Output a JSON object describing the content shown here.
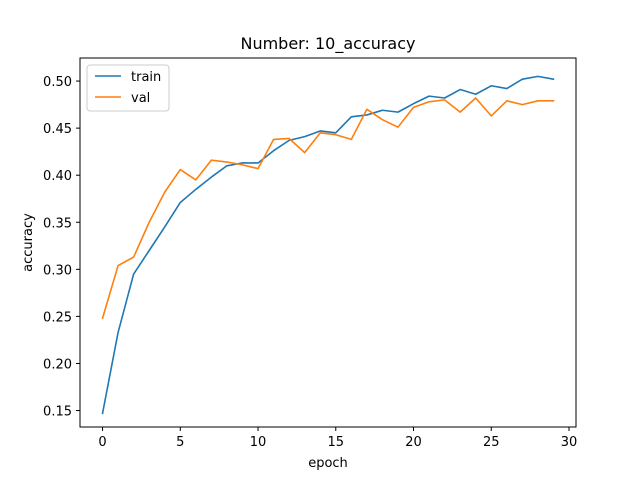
{
  "chart_data": {
    "type": "line",
    "title": "Number: 10_accuracy",
    "xlabel": "epoch",
    "ylabel": "accuracy",
    "xlim": [
      -1.45,
      30.45
    ],
    "ylim": [
      0.1325,
      0.5245
    ],
    "xticks": [
      0,
      5,
      10,
      15,
      20,
      25,
      30
    ],
    "yticks": [
      0.15,
      0.2,
      0.25,
      0.3,
      0.35,
      0.4,
      0.45,
      0.5
    ],
    "ytick_labels": [
      "0.15",
      "0.20",
      "0.25",
      "0.30",
      "0.35",
      "0.40",
      "0.45",
      "0.50"
    ],
    "grid": false,
    "legend_position": "top-left",
    "x": [
      0,
      1,
      2,
      3,
      4,
      5,
      6,
      7,
      8,
      9,
      10,
      11,
      12,
      13,
      14,
      15,
      16,
      17,
      18,
      19,
      20,
      21,
      22,
      23,
      24,
      25,
      26,
      27,
      28,
      29
    ],
    "series": [
      {
        "name": "train",
        "color": "#1f77b4",
        "values": [
          0.147,
          0.233,
          0.295,
          0.32,
          0.345,
          0.371,
          0.385,
          0.398,
          0.41,
          0.413,
          0.413,
          0.426,
          0.437,
          0.441,
          0.447,
          0.445,
          0.462,
          0.464,
          0.469,
          0.467,
          0.476,
          0.484,
          0.482,
          0.491,
          0.486,
          0.495,
          0.492,
          0.502,
          0.505,
          0.502
        ]
      },
      {
        "name": "val",
        "color": "#ff7f0e",
        "values": [
          0.248,
          0.304,
          0.313,
          0.35,
          0.382,
          0.406,
          0.395,
          0.416,
          0.414,
          0.411,
          0.407,
          0.438,
          0.439,
          0.424,
          0.445,
          0.443,
          0.438,
          0.47,
          0.459,
          0.451,
          0.472,
          0.478,
          0.48,
          0.467,
          0.482,
          0.463,
          0.479,
          0.475,
          0.479,
          0.479
        ]
      }
    ]
  }
}
